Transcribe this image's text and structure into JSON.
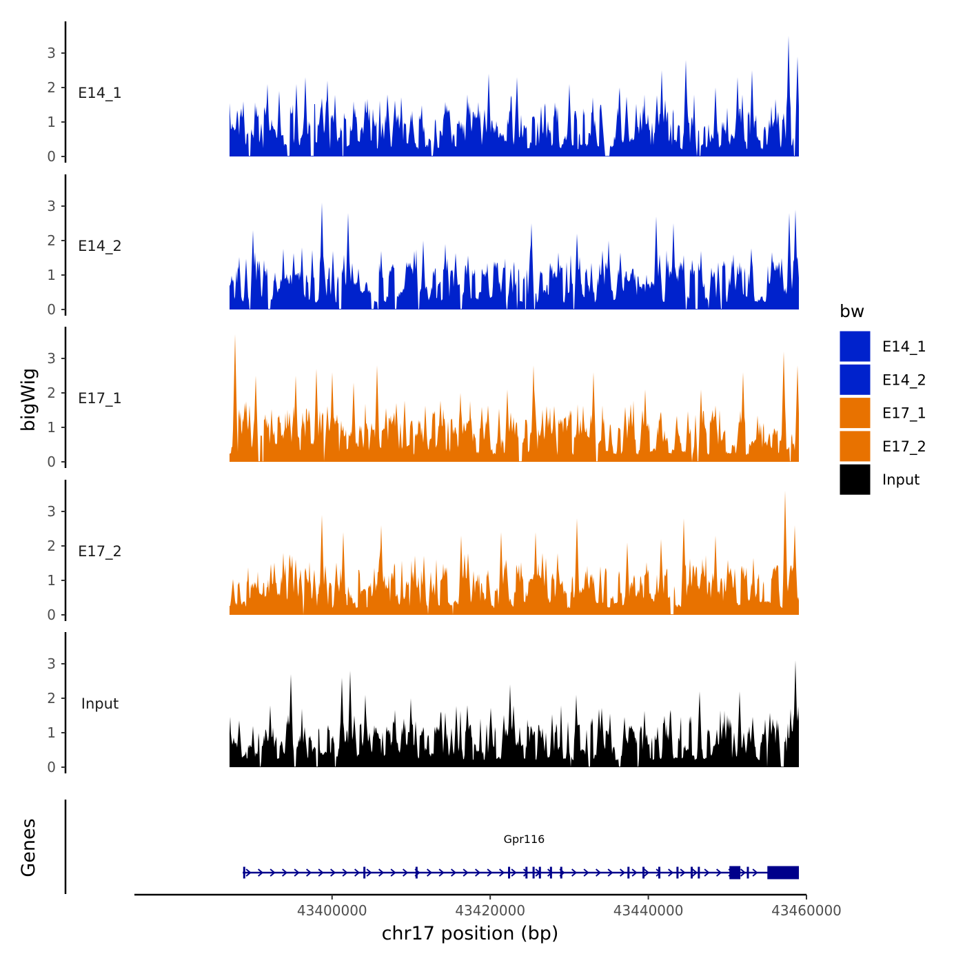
{
  "chart_data": {
    "type": "area",
    "chromosome": "chr17",
    "xlabel": "chr17 position (bp)",
    "ylabel": "bigWig",
    "genes_label": "Genes",
    "xlim": [
      43375000,
      43460000
    ],
    "ylim": [
      0,
      3.8
    ],
    "x_ticks": [
      {
        "value": 43400000,
        "label": "43400000"
      },
      {
        "value": 43420000,
        "label": "43420000"
      },
      {
        "value": 43440000,
        "label": "43440000"
      },
      {
        "value": 43460000,
        "label": "43460000"
      }
    ],
    "y_ticks": [
      {
        "value": 0,
        "label": "0"
      },
      {
        "value": 1,
        "label": "1"
      },
      {
        "value": 2,
        "label": "2"
      },
      {
        "value": 3,
        "label": "3"
      }
    ],
    "legend_title": "bw",
    "tracks": [
      {
        "name": "E14_1",
        "color": "#0022cc",
        "seed": 11,
        "x_start": 43387000,
        "x_end": 43459000,
        "peaks": [
          {
            "x": 43388800,
            "y": 1.6
          },
          {
            "x": 43391800,
            "y": 2.1
          },
          {
            "x": 43393300,
            "y": 1.9
          },
          {
            "x": 43395500,
            "y": 2.1
          },
          {
            "x": 43396600,
            "y": 2.3
          },
          {
            "x": 43399400,
            "y": 2.2
          },
          {
            "x": 43402700,
            "y": 1.6
          },
          {
            "x": 43407000,
            "y": 1.8
          },
          {
            "x": 43419800,
            "y": 2.4
          },
          {
            "x": 43423400,
            "y": 2.3
          },
          {
            "x": 43430000,
            "y": 2.1
          },
          {
            "x": 43436400,
            "y": 2.0
          },
          {
            "x": 43441700,
            "y": 2.5
          },
          {
            "x": 43444700,
            "y": 2.8
          },
          {
            "x": 43448500,
            "y": 2.0
          },
          {
            "x": 43451300,
            "y": 2.3
          },
          {
            "x": 43453100,
            "y": 2.5
          },
          {
            "x": 43457700,
            "y": 3.5
          },
          {
            "x": 43458900,
            "y": 2.9
          }
        ]
      },
      {
        "name": "E14_2",
        "color": "#0022cc",
        "seed": 23,
        "x_start": 43387000,
        "x_end": 43459000,
        "peaks": [
          {
            "x": 43390000,
            "y": 2.3
          },
          {
            "x": 43396200,
            "y": 1.8
          },
          {
            "x": 43398700,
            "y": 3.1
          },
          {
            "x": 43402000,
            "y": 2.8
          },
          {
            "x": 43406200,
            "y": 1.7
          },
          {
            "x": 43411500,
            "y": 2.0
          },
          {
            "x": 43414300,
            "y": 1.9
          },
          {
            "x": 43425200,
            "y": 2.5
          },
          {
            "x": 43431000,
            "y": 2.2
          },
          {
            "x": 43435000,
            "y": 2.0
          },
          {
            "x": 43441000,
            "y": 2.7
          },
          {
            "x": 43443200,
            "y": 2.5
          },
          {
            "x": 43446700,
            "y": 1.7
          },
          {
            "x": 43450800,
            "y": 1.6
          },
          {
            "x": 43457800,
            "y": 2.8
          },
          {
            "x": 43458600,
            "y": 2.9
          }
        ]
      },
      {
        "name": "E17_1",
        "color": "#e87200",
        "seed": 37,
        "x_start": 43387000,
        "x_end": 43459000,
        "peaks": [
          {
            "x": 43387700,
            "y": 3.7
          },
          {
            "x": 43390300,
            "y": 2.5
          },
          {
            "x": 43395400,
            "y": 2.5
          },
          {
            "x": 43398000,
            "y": 2.7
          },
          {
            "x": 43400000,
            "y": 2.6
          },
          {
            "x": 43402700,
            "y": 2.3
          },
          {
            "x": 43405700,
            "y": 2.8
          },
          {
            "x": 43416200,
            "y": 2.0
          },
          {
            "x": 43422200,
            "y": 2.1
          },
          {
            "x": 43425500,
            "y": 2.8
          },
          {
            "x": 43433100,
            "y": 2.6
          },
          {
            "x": 43439600,
            "y": 2.1
          },
          {
            "x": 43446700,
            "y": 2.1
          },
          {
            "x": 43452000,
            "y": 2.6
          },
          {
            "x": 43457100,
            "y": 3.2
          },
          {
            "x": 43458900,
            "y": 2.8
          }
        ]
      },
      {
        "name": "E17_2",
        "color": "#e87200",
        "seed": 53,
        "x_start": 43387000,
        "x_end": 43459000,
        "peaks": [
          {
            "x": 43393800,
            "y": 1.8
          },
          {
            "x": 43398700,
            "y": 2.9
          },
          {
            "x": 43401400,
            "y": 2.4
          },
          {
            "x": 43406200,
            "y": 2.6
          },
          {
            "x": 43416300,
            "y": 2.3
          },
          {
            "x": 43421400,
            "y": 2.4
          },
          {
            "x": 43425700,
            "y": 2.4
          },
          {
            "x": 43431000,
            "y": 2.8
          },
          {
            "x": 43437300,
            "y": 2.1
          },
          {
            "x": 43441600,
            "y": 2.2
          },
          {
            "x": 43444500,
            "y": 2.8
          },
          {
            "x": 43448500,
            "y": 2.3
          },
          {
            "x": 43457300,
            "y": 3.6
          },
          {
            "x": 43458500,
            "y": 2.6
          }
        ]
      },
      {
        "name": "Input",
        "color": "#000000",
        "seed": 71,
        "x_start": 43387000,
        "x_end": 43459000,
        "peaks": [
          {
            "x": 43394800,
            "y": 2.7
          },
          {
            "x": 43401200,
            "y": 2.6
          },
          {
            "x": 43402300,
            "y": 2.8
          },
          {
            "x": 43404200,
            "y": 2.1
          },
          {
            "x": 43410000,
            "y": 2.0
          },
          {
            "x": 43422500,
            "y": 2.4
          },
          {
            "x": 43430900,
            "y": 2.1
          },
          {
            "x": 43446500,
            "y": 2.2
          },
          {
            "x": 43451500,
            "y": 2.2
          },
          {
            "x": 43458600,
            "y": 3.1
          }
        ]
      }
    ],
    "gene": {
      "name": "Gpr116",
      "strand": "+",
      "color": "#00008b",
      "start": 43388700,
      "end": 43459000,
      "label_position": 43424300,
      "exons": [
        {
          "start": 43388800,
          "end": 43388900
        },
        {
          "start": 43404000,
          "end": 43404100
        },
        {
          "start": 43410600,
          "end": 43410700
        },
        {
          "start": 43422300,
          "end": 43422400
        },
        {
          "start": 43424500,
          "end": 43424600
        },
        {
          "start": 43425400,
          "end": 43425500
        },
        {
          "start": 43426200,
          "end": 43426300
        },
        {
          "start": 43427600,
          "end": 43427750
        },
        {
          "start": 43428900,
          "end": 43429000
        },
        {
          "start": 43437400,
          "end": 43437500
        },
        {
          "start": 43439300,
          "end": 43439400
        },
        {
          "start": 43441300,
          "end": 43441400
        },
        {
          "start": 43443600,
          "end": 43443700
        },
        {
          "start": 43445400,
          "end": 43445500
        },
        {
          "start": 43446300,
          "end": 43446400
        },
        {
          "start": 43450300,
          "end": 43451600
        },
        {
          "start": 43452500,
          "end": 43452600
        },
        {
          "start": 43455100,
          "end": 43459000
        }
      ]
    }
  }
}
